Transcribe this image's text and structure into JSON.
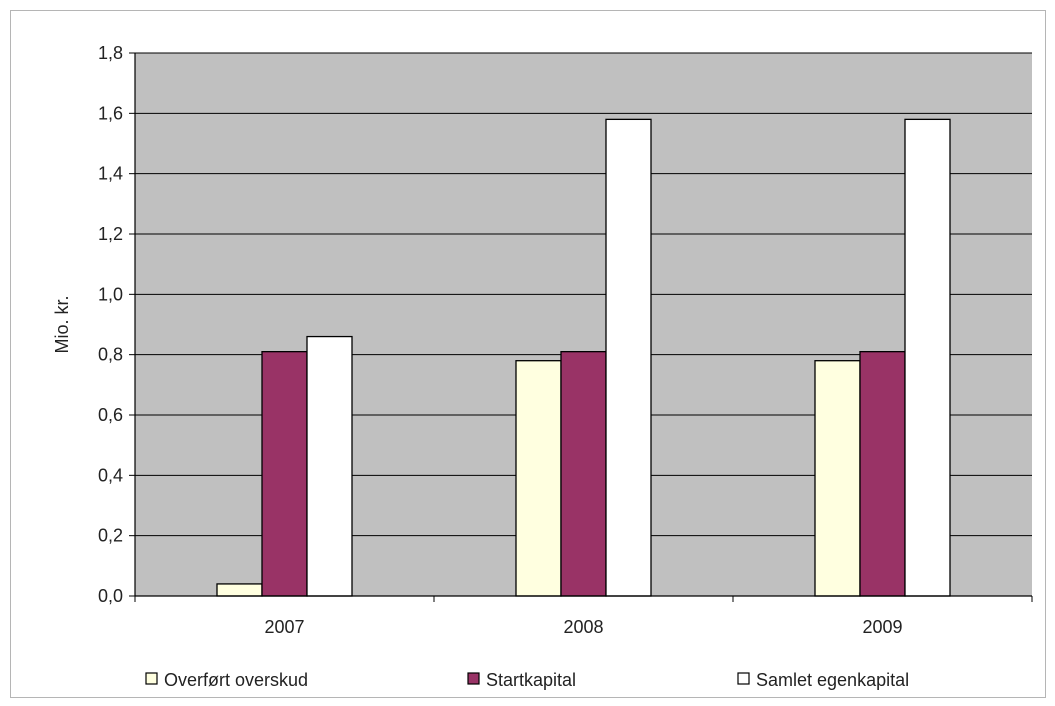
{
  "chart_data": {
    "type": "bar",
    "title": "",
    "xlabel": "",
    "ylabel": "Mio. kr.",
    "categories": [
      "2007",
      "2008",
      "2009"
    ],
    "ylim": [
      0,
      1.8
    ],
    "yticks": [
      "0,0",
      "0,2",
      "0,4",
      "0,6",
      "0,8",
      "1,0",
      "1,2",
      "1,4",
      "1,6",
      "1,8"
    ],
    "grid": true,
    "legend_position": "bottom",
    "series": [
      {
        "name": "Overført overskud",
        "color": "#ffffe0",
        "values": [
          0.04,
          0.78,
          0.78
        ]
      },
      {
        "name": "Startkapital",
        "color": "#993366",
        "values": [
          0.81,
          0.81,
          0.81
        ]
      },
      {
        "name": "Samlet egenkapital",
        "color": "#ffffff",
        "values": [
          0.86,
          1.58,
          1.58
        ]
      }
    ],
    "colors": {
      "plot_background": "#c0c0c0",
      "gridline": "#000000",
      "bar_outline": "#000000"
    }
  }
}
